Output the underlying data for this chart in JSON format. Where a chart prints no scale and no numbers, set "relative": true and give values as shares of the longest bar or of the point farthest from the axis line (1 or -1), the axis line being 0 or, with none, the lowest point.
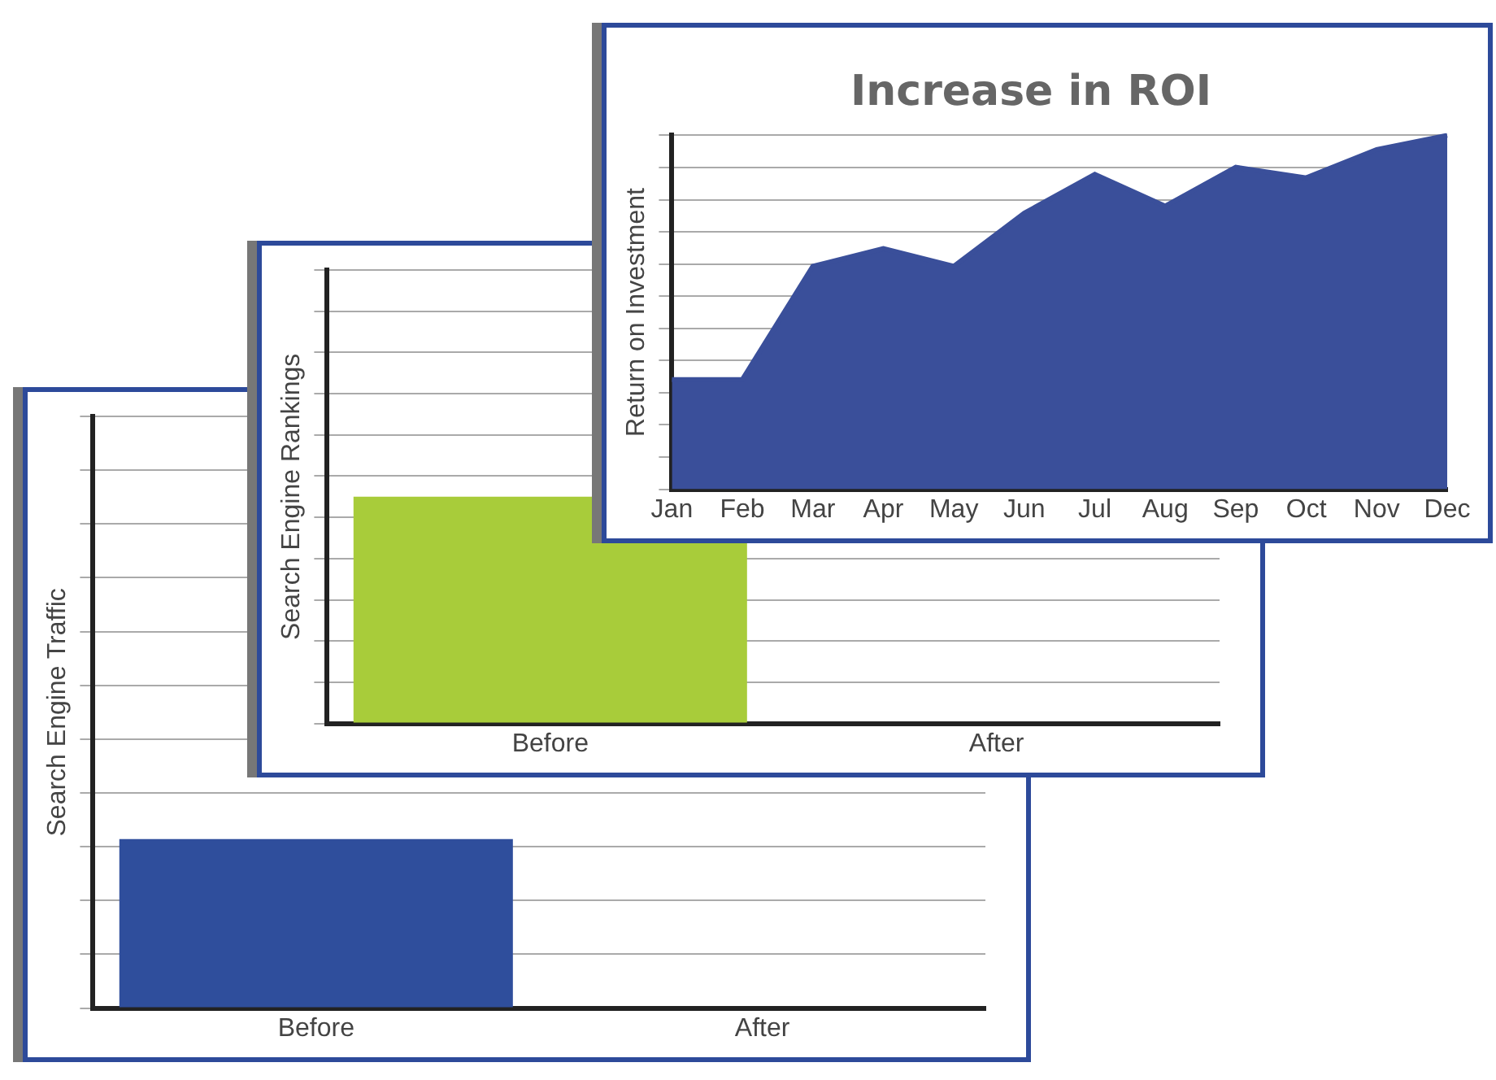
{
  "chart_data": [
    {
      "type": "bar",
      "ylabel": "Search Engine Traffic",
      "categories": [
        "Before",
        "After"
      ],
      "values": [
        1,
        null
      ],
      "color": "#2f4e9c",
      "relative": true,
      "grid": "y"
    },
    {
      "type": "bar",
      "ylabel": "Search Engine Rankings",
      "categories": [
        "Before",
        "After"
      ],
      "values": [
        1,
        null
      ],
      "color": "#a8cc3a",
      "relative": true,
      "grid": "y"
    },
    {
      "type": "area",
      "title": "Increase in ROI",
      "ylabel": "Return on Investment",
      "categories": [
        "Jan",
        "Feb",
        "Mar",
        "Apr",
        "May",
        "Jun",
        "Jul",
        "Aug",
        "Sep",
        "Oct",
        "Nov",
        "Dec"
      ],
      "values": [
        0.31,
        0.31,
        0.63,
        0.68,
        0.63,
        0.78,
        0.89,
        0.8,
        0.91,
        0.88,
        0.96,
        1
      ],
      "color": "#3a4f9a",
      "relative": true,
      "grid": "y"
    }
  ]
}
